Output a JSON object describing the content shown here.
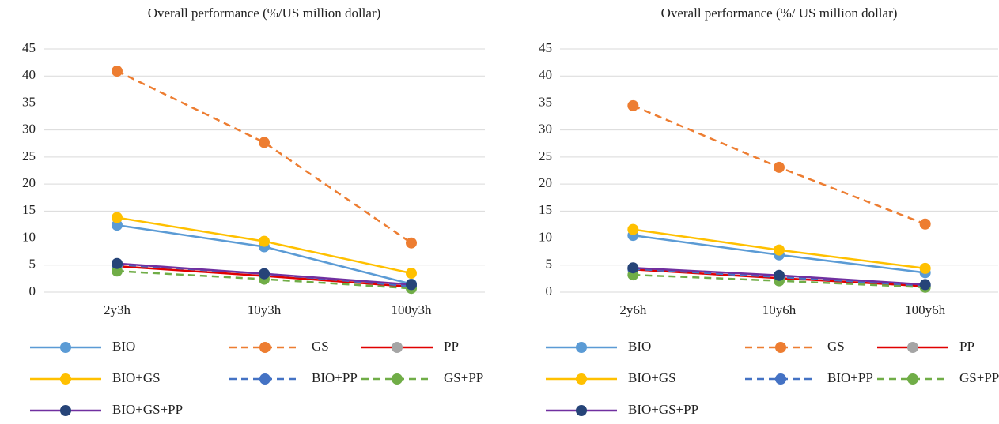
{
  "chart_data": [
    {
      "type": "line",
      "title": "Overall performance (%/US million dollar)",
      "categories": [
        "2y3h",
        "10y3h",
        "100y3h"
      ],
      "ylim": [
        0,
        45
      ],
      "yticks": [
        0,
        5,
        10,
        15,
        20,
        25,
        30,
        35,
        40,
        45
      ],
      "grid": true,
      "series": [
        {
          "name": "BIO",
          "color": "#5b9bd5",
          "marker_color": "#5b9bd5",
          "dash": false,
          "values": [
            12.4,
            8.4,
            1.5
          ]
        },
        {
          "name": "GS",
          "color": "#ed7d31",
          "marker_color": "#ed7d31",
          "dash": true,
          "values": [
            40.9,
            27.7,
            9.1
          ]
        },
        {
          "name": "PP",
          "color": "#e00000",
          "marker_color": "#a5a5a5",
          "dash": false,
          "values": [
            4.8,
            3.0,
            1.0
          ]
        },
        {
          "name": "BIO+GS",
          "color": "#ffc000",
          "marker_color": "#ffc000",
          "dash": false,
          "values": [
            13.8,
            9.4,
            3.5
          ]
        },
        {
          "name": "BIO+PP",
          "color": "#4472c4",
          "marker_color": "#4472c4",
          "dash": true,
          "values": [
            5.1,
            3.4,
            1.1
          ]
        },
        {
          "name": "GS+PP",
          "color": "#70ad47",
          "marker_color": "#70ad47",
          "dash": true,
          "values": [
            3.9,
            2.4,
            0.7
          ]
        },
        {
          "name": "BIO+GS+PP",
          "color": "#7030a0",
          "marker_color": "#264478",
          "dash": false,
          "values": [
            5.3,
            3.4,
            1.4
          ]
        }
      ]
    },
    {
      "type": "line",
      "title": "Overall performance (%/ US million dollar)",
      "categories": [
        "2y6h",
        "10y6h",
        "100y6h"
      ],
      "ylim": [
        0,
        45
      ],
      "yticks": [
        0,
        5,
        10,
        15,
        20,
        25,
        30,
        35,
        40,
        45
      ],
      "grid": true,
      "series": [
        {
          "name": "BIO",
          "color": "#5b9bd5",
          "marker_color": "#5b9bd5",
          "dash": false,
          "values": [
            10.5,
            6.9,
            3.6
          ]
        },
        {
          "name": "GS",
          "color": "#ed7d31",
          "marker_color": "#ed7d31",
          "dash": true,
          "values": [
            34.5,
            23.1,
            12.6
          ]
        },
        {
          "name": "PP",
          "color": "#e00000",
          "marker_color": "#a5a5a5",
          "dash": false,
          "values": [
            4.2,
            2.6,
            1.1
          ]
        },
        {
          "name": "BIO+GS",
          "color": "#ffc000",
          "marker_color": "#ffc000",
          "dash": false,
          "values": [
            11.6,
            7.8,
            4.4
          ]
        },
        {
          "name": "BIO+PP",
          "color": "#4472c4",
          "marker_color": "#4472c4",
          "dash": true,
          "values": [
            4.3,
            2.8,
            1.2
          ]
        },
        {
          "name": "GS+PP",
          "color": "#70ad47",
          "marker_color": "#70ad47",
          "dash": true,
          "values": [
            3.2,
            2.1,
            0.9
          ]
        },
        {
          "name": "BIO+GS+PP",
          "color": "#7030a0",
          "marker_color": "#264478",
          "dash": false,
          "values": [
            4.5,
            3.1,
            1.4
          ]
        }
      ]
    }
  ]
}
